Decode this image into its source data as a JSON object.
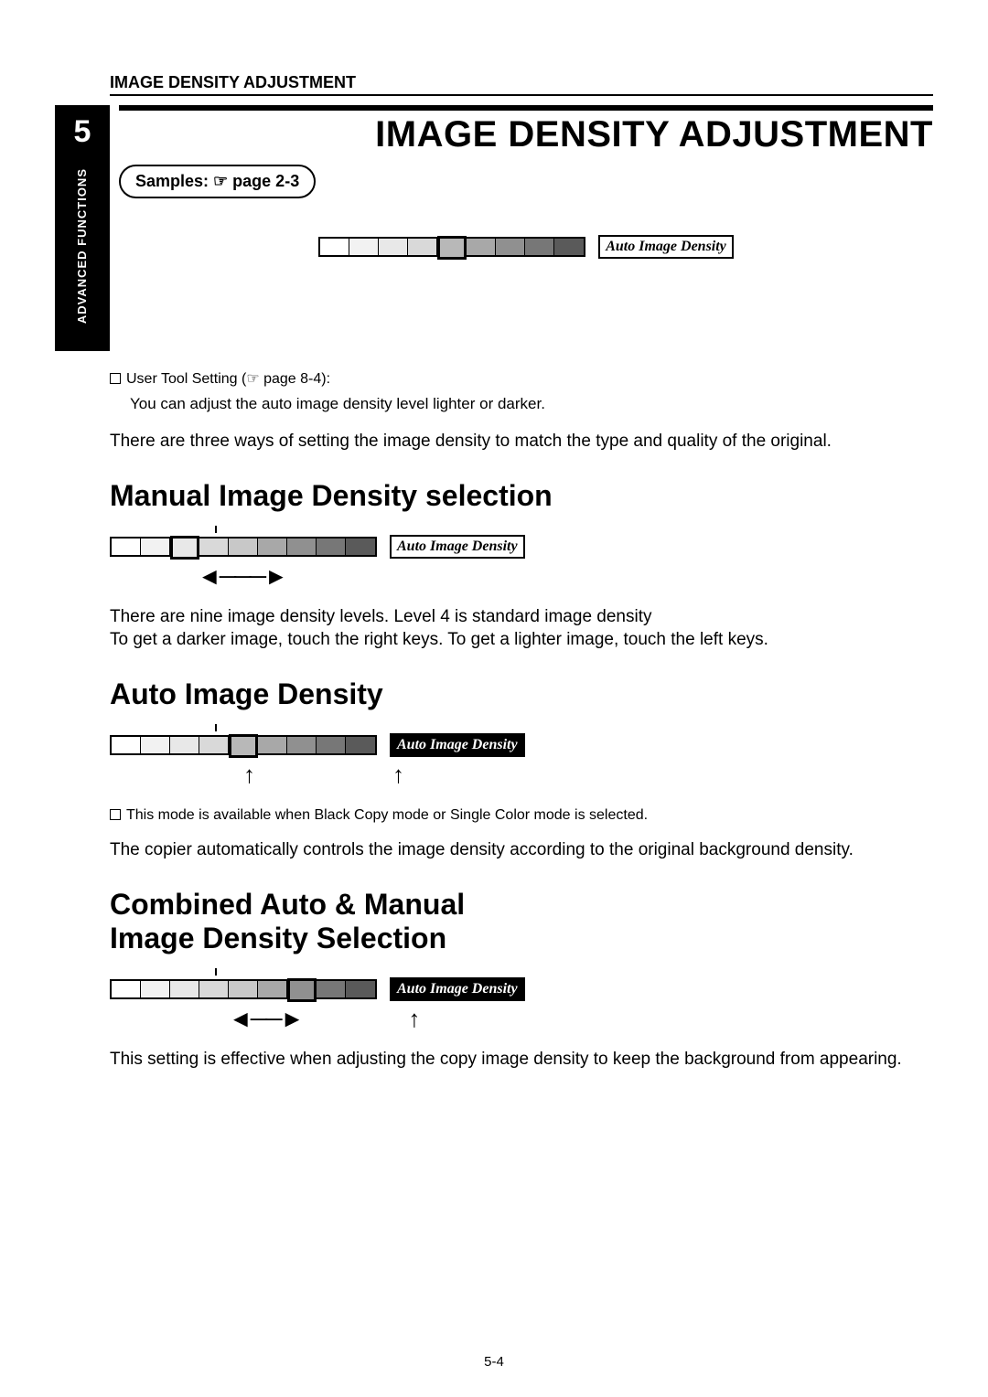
{
  "header": {
    "running_title": "IMAGE DENSITY ADJUSTMENT"
  },
  "tab": {
    "chapter_number": "5",
    "chapter_label": "ADVANCED\nFUNCTIONS"
  },
  "title": "IMAGE DENSITY ADJUSTMENT",
  "sample_chip": "Samples: ☞ page 2-3",
  "auto_label": "Auto Image Density",
  "hero_bar": {
    "seg_colors": [
      "#ffffff",
      "#f2f2f2",
      "#e8e8e8",
      "#d9d9d9",
      "#b8b8b8",
      "#a8a8a8",
      "#909090",
      "#777777",
      "#5a5a5a"
    ],
    "selected_index": 4,
    "auto_selected": false
  },
  "note1_lead": "User Tool Setting (☞ page 8-4):",
  "note1_body": "You can adjust the auto image density level lighter or darker.",
  "intro": "There are three ways of setting the image density to match the type and quality of the original.",
  "manual": {
    "heading": "Manual Image Density selection",
    "bar": {
      "seg_colors": [
        "#ffffff",
        "#f2f2f2",
        "#e8e8e8",
        "#d9d9d9",
        "#c8c8c8",
        "#a8a8a8",
        "#909090",
        "#777777",
        "#5a5a5a"
      ],
      "selected_index": 2,
      "tick_index": 3,
      "auto_selected": false
    },
    "arrow_text": "◄───►",
    "para": "There are nine image density levels.  Level 4 is standard image density\nTo get a darker image, touch the right keys.  To get a lighter image, touch the left keys."
  },
  "auto": {
    "heading": "Auto Image Density",
    "bar": {
      "seg_colors": [
        "#ffffff",
        "#f2f2f2",
        "#e8e8e8",
        "#d9d9d9",
        "#b8b8b8",
        "#a8a8a8",
        "#909090",
        "#777777",
        "#5a5a5a"
      ],
      "selected_index": 4,
      "tick_index": 3,
      "auto_selected": true
    },
    "arrow_text": "↑",
    "note": "This mode is available when Black Copy mode or Single Color mode is selected.",
    "para": "The copier automatically controls the image density according to the original background density."
  },
  "combined": {
    "heading_l1": "Combined Auto & Manual",
    "heading_l2": "Image Density Selection",
    "bar": {
      "seg_colors": [
        "#ffffff",
        "#f2f2f2",
        "#e8e8e8",
        "#d9d9d9",
        "#c8c8c8",
        "#a8a8a8",
        "#909090",
        "#777777",
        "#5a5a5a"
      ],
      "selected_index": 6,
      "tick_index": 3,
      "auto_selected": true
    },
    "arrow_lr": "◄──►",
    "arrow_up": "↑",
    "para": "This setting is effective when adjusting the copy image density to keep the background from appearing."
  },
  "page_number": "5-4"
}
